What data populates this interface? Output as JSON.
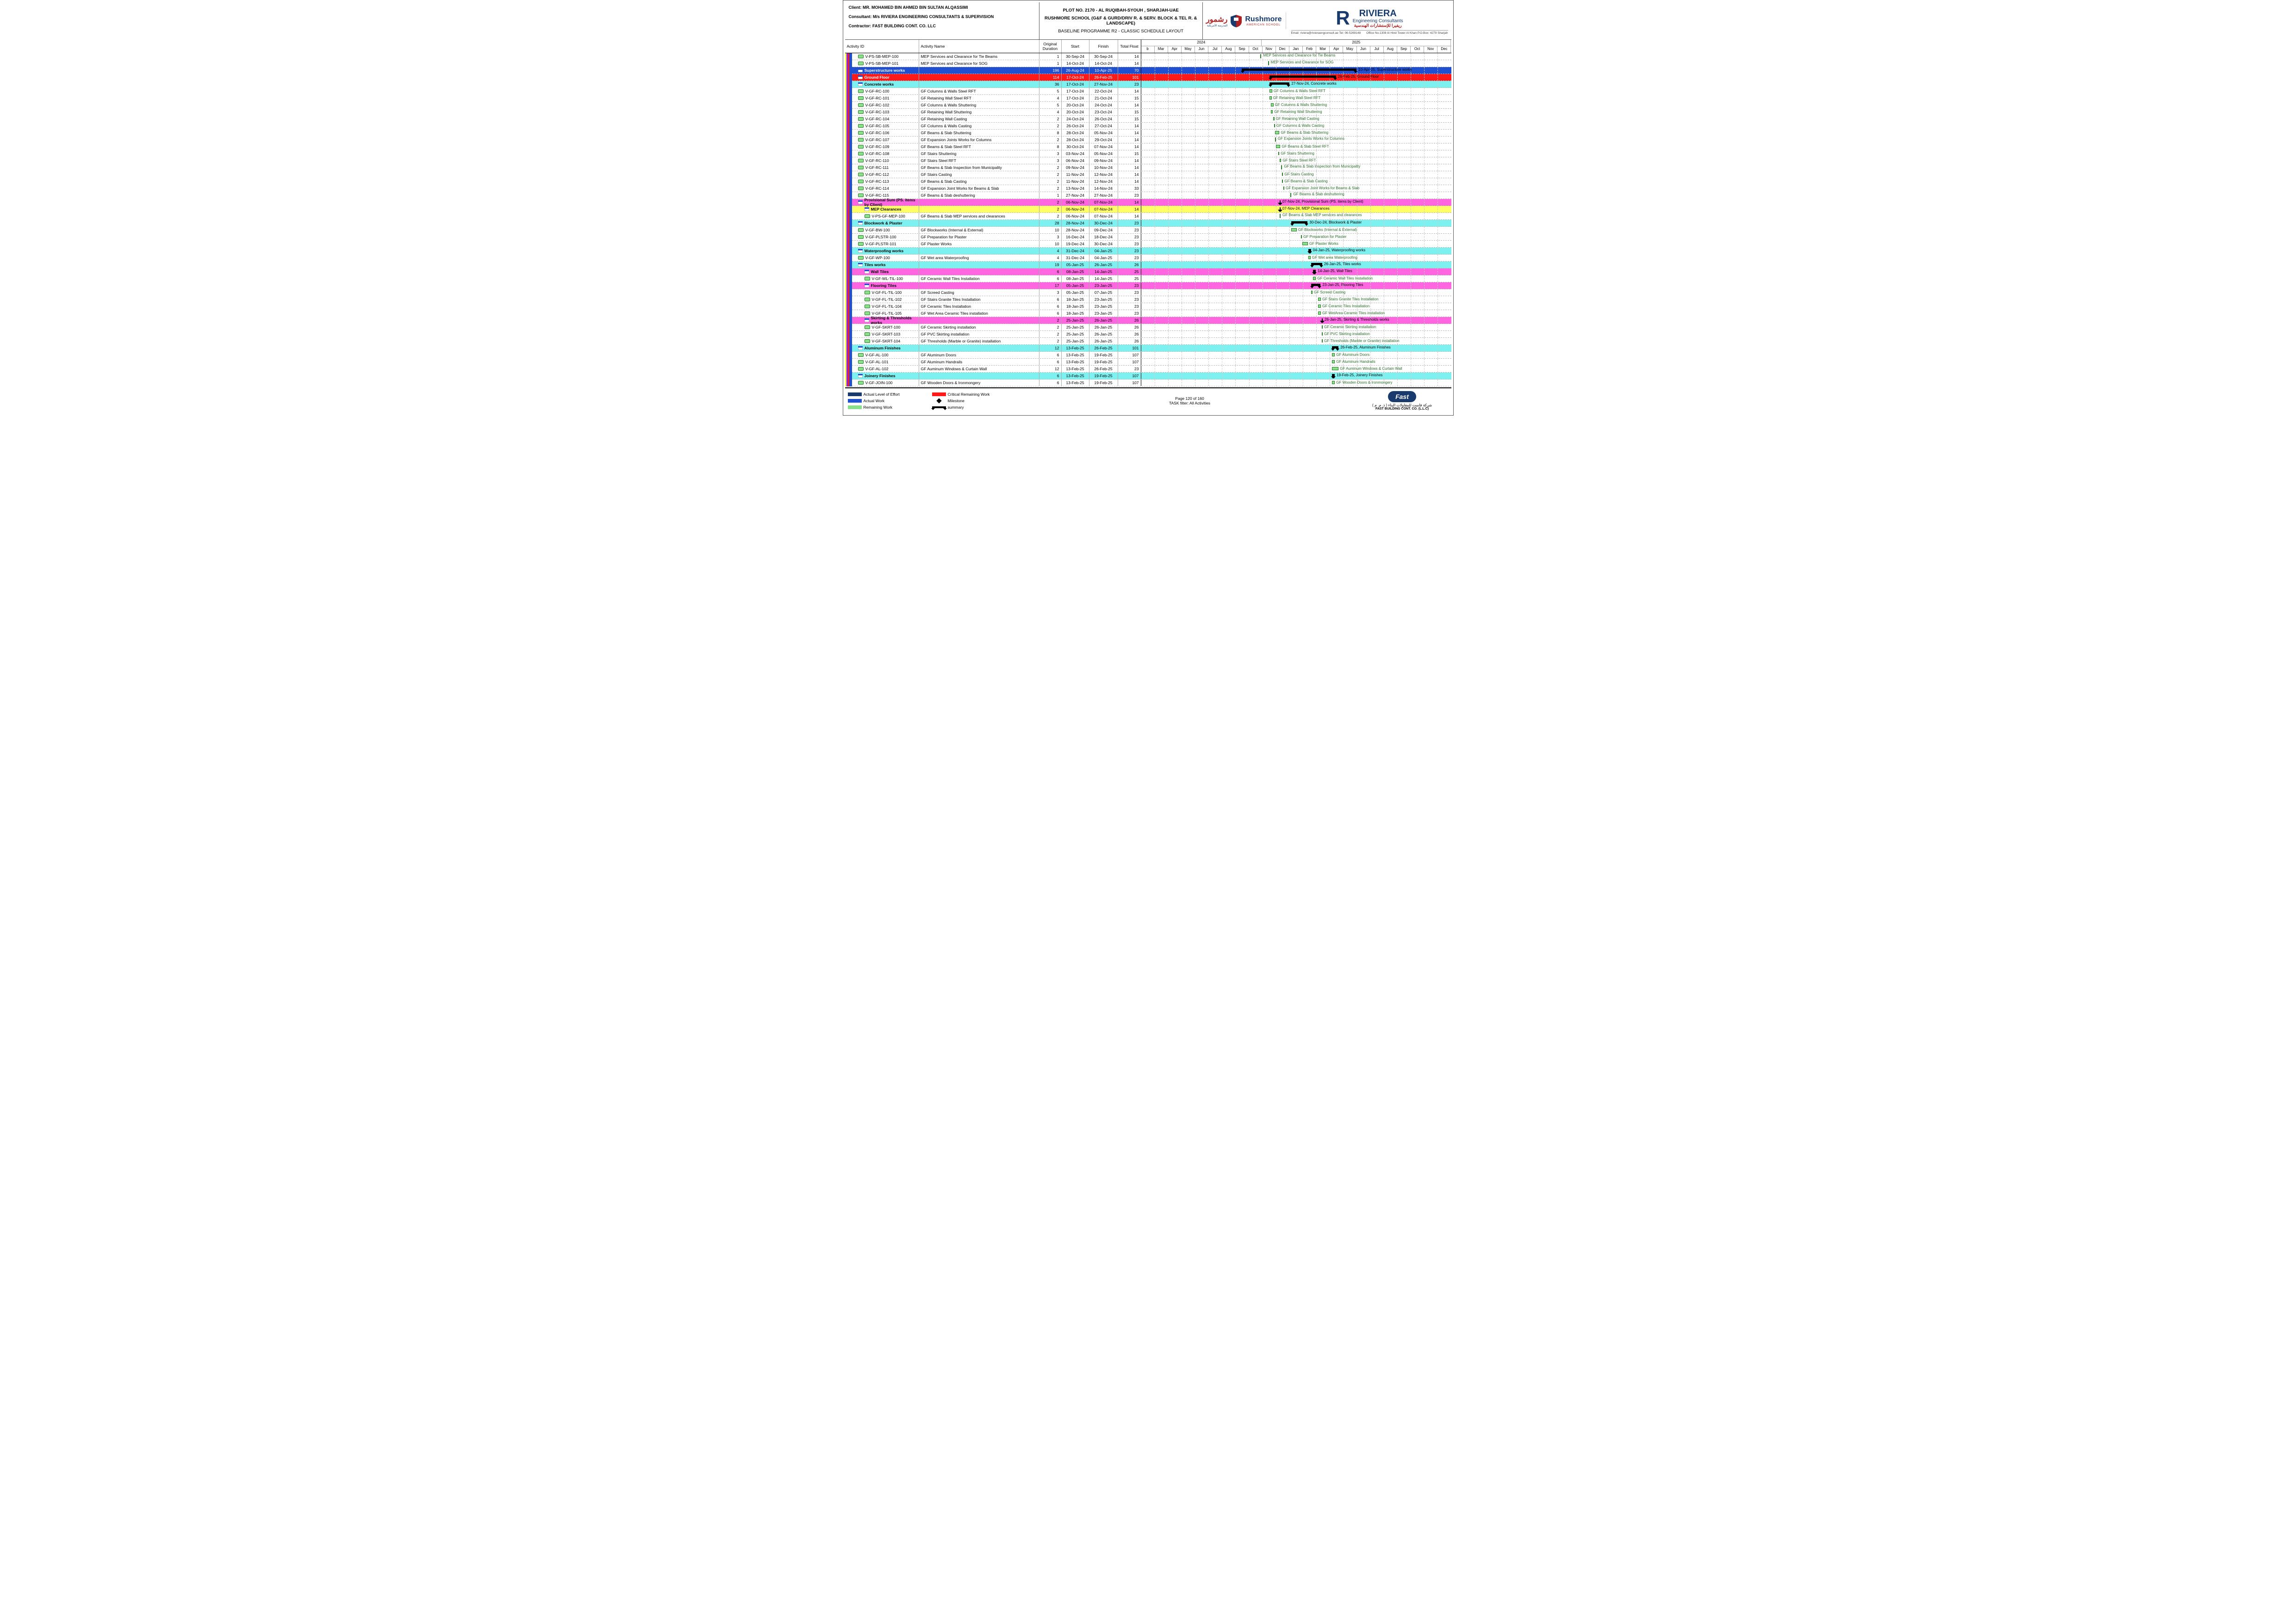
{
  "client": "Client: MR. MOHAMED BIN AHMED BIN SULTAN ALQASSIMI",
  "consultant": "Consultant: M/s RIVIERA ENGINEERING CONSULTANTS & SUPERVISION",
  "contractor": "Contractor: FAST BUILDING CONT. CO. LLC",
  "plot": "PLOT NO. 2170 - AL RUQIBAH-SYOUH , SHARJAH-UAE",
  "project": "RUSHMORE SCHOOL (G&F & GURD/DRIV R. & SERV. BLOCK & TEL R. & LANDSCAPE)",
  "baseline": "BASELINE PROGRAMME R2 - CLASSIC SCHEDULE LAYOUT",
  "rushmore_ar": "رشمور",
  "rushmore_en": "Rushmore",
  "rushmore_sub": "AMERICAN SCHOOL",
  "riviera": "RIVIERA",
  "riviera_sub": "Engineering Consultants",
  "riviera_ar": "ريفيرا للإستشارات الهندسية",
  "riviera_contact_l": "Email: riviera@rivieraengconsult.ae   Tel: 06-5269148",
  "riviera_contact_r": "Office No.1308 Al Hind Tower Al Khan   P.O.Box: 4279 Sharjah",
  "cols": {
    "id": "Activity ID",
    "name": "Activity Name",
    "dur": "Original Duration",
    "start": "Start",
    "finish": "Finish",
    "float": "Total Float"
  },
  "years": [
    {
      "l": "2024",
      "w": 38.9
    },
    {
      "l": "2025",
      "w": 61.1
    }
  ],
  "months": [
    "b",
    "Mar",
    "Apr",
    "May",
    "Jun",
    "Jul",
    "Aug",
    "Sep",
    "Oct",
    "Nov",
    "Dec",
    "Jan",
    "Feb",
    "Mar",
    "Apr",
    "May",
    "Jun",
    "Jul",
    "Aug",
    "Sep",
    "Oct",
    "Nov",
    "Dec"
  ],
  "stripe_colors": [
    "#ffff33",
    "#8a1cff",
    "#ff1a1a",
    "#2050d0",
    "#2050d0"
  ],
  "rows": [
    {
      "t": "task",
      "id": "V-PS-SB-MEP-100",
      "name": "MEP Services and Clearance for Tie Beams",
      "dur": "1",
      "s": "30-Sep-24",
      "f": "30-Sep-24",
      "fl": "14",
      "bar": {
        "x": 38.5,
        "w": 0.3,
        "type": "tick",
        "lbl": "MEP Services and Clearance for Tie Beams"
      }
    },
    {
      "t": "task",
      "id": "V-PS-SB-MEP-101",
      "name": "MEP Services and Clearance for SOG",
      "dur": "1",
      "s": "14-Oct-24",
      "f": "14-Oct-24",
      "fl": "14",
      "bar": {
        "x": 40.9,
        "w": 0.3,
        "type": "tick",
        "lbl": "MEP Services and Clearance for SOG"
      }
    },
    {
      "t": "grp",
      "bg": "bg-blue",
      "id": "Superstructure works",
      "name": "",
      "dur": "196",
      "s": "26-Aug-24",
      "f": "10-Apr-25",
      "fl": "70",
      "bar": {
        "x": 32.5,
        "w": 37,
        "type": "sum",
        "lbl": "10-Apr-25, Superstructure works",
        "lc": "b"
      }
    },
    {
      "t": "grp",
      "bg": "bg-red",
      "id": "Ground Floor",
      "name": "",
      "dur": "114",
      "s": "17-Oct-24",
      "f": "26-Feb-25",
      "fl": "101",
      "bar": {
        "x": 41.4,
        "w": 21.5,
        "type": "sum",
        "lbl": "26-Feb-25, Ground Floor",
        "lc": "b"
      }
    },
    {
      "t": "grp",
      "bg": "bg-cyan",
      "id": "Concrete works",
      "name": "",
      "dur": "36",
      "s": "17-Oct-24",
      "f": "27-Nov-24",
      "fl": "23",
      "bar": {
        "x": 41.4,
        "w": 6.5,
        "type": "sum",
        "lbl": "27-Nov-24, Concrete works",
        "lc": "b"
      }
    },
    {
      "t": "task",
      "id": "V-GF-RC-100",
      "name": "GF Columns & Walls Steel RFT",
      "dur": "5",
      "s": "17-Oct-24",
      "f": "22-Oct-24",
      "fl": "14",
      "bar": {
        "x": 41.4,
        "w": 0.9,
        "type": "task",
        "lbl": "GF Columns & Walls Steel RFT"
      }
    },
    {
      "t": "task",
      "id": "V-GF-RC-101",
      "name": "GF Retaining Wall Steel RFT",
      "dur": "4",
      "s": "17-Oct-24",
      "f": "21-Oct-24",
      "fl": "15",
      "bar": {
        "x": 41.4,
        "w": 0.7,
        "type": "task",
        "lbl": "GF Retaining Wall Steel RFT"
      }
    },
    {
      "t": "task",
      "id": "V-GF-RC-102",
      "name": "GF Columns & Walls Shuttering",
      "dur": "5",
      "s": "20-Oct-24",
      "f": "24-Oct-24",
      "fl": "14",
      "bar": {
        "x": 41.9,
        "w": 0.8,
        "type": "task",
        "lbl": "GF Columns & Walls Shuttering"
      }
    },
    {
      "t": "task",
      "id": "V-GF-RC-103",
      "name": "GF Retaining Wall Shuttering",
      "dur": "4",
      "s": "20-Oct-24",
      "f": "23-Oct-24",
      "fl": "15",
      "bar": {
        "x": 41.9,
        "w": 0.6,
        "type": "task",
        "lbl": "GF Retaining Wall Shuttering"
      }
    },
    {
      "t": "task",
      "id": "V-GF-RC-104",
      "name": "GF Retaining Wall Casting",
      "dur": "2",
      "s": "24-Oct-24",
      "f": "26-Oct-24",
      "fl": "15",
      "bar": {
        "x": 42.6,
        "w": 0.4,
        "type": "task",
        "lbl": "GF Retaining Wall Casting"
      }
    },
    {
      "t": "task",
      "id": "V-GF-RC-105",
      "name": "GF Columns & Walls Casting",
      "dur": "2",
      "s": "26-Oct-24",
      "f": "27-Oct-24",
      "fl": "14",
      "bar": {
        "x": 42.9,
        "w": 0.3,
        "type": "task",
        "lbl": "GF Columns & Walls Casting"
      }
    },
    {
      "t": "task",
      "id": "V-GF-RC-106",
      "name": "GF Beams & Slab Shuttering",
      "dur": "8",
      "s": "28-Oct-24",
      "f": "05-Nov-24",
      "fl": "14",
      "bar": {
        "x": 43.2,
        "w": 1.4,
        "type": "task",
        "lbl": "GF Beams & Slab Shuttering"
      }
    },
    {
      "t": "task",
      "id": "V-GF-RC-107",
      "name": "GF Expansion Joints Works for Columns",
      "dur": "2",
      "s": "28-Oct-24",
      "f": "29-Oct-24",
      "fl": "14",
      "bar": {
        "x": 43.2,
        "w": 0.3,
        "type": "tick",
        "lbl": "GF Expansion Joints Works for Columns"
      }
    },
    {
      "t": "task",
      "id": "V-GF-RC-109",
      "name": "GF Beams & Slab Steel RFT",
      "dur": "8",
      "s": "30-Oct-24",
      "f": "07-Nov-24",
      "fl": "14",
      "bar": {
        "x": 43.5,
        "w": 1.4,
        "type": "task",
        "lbl": "GF Beams & Slab Steel RFT"
      }
    },
    {
      "t": "task",
      "id": "V-GF-RC-108",
      "name": "GF Stairs Shuttering",
      "dur": "3",
      "s": "03-Nov-24",
      "f": "05-Nov-24",
      "fl": "15",
      "bar": {
        "x": 44.2,
        "w": 0.4,
        "type": "task",
        "lbl": "GF Stairs Shuttering"
      }
    },
    {
      "t": "task",
      "id": "V-GF-RC-110",
      "name": "GF Stairs Steel RFT",
      "dur": "3",
      "s": "06-Nov-24",
      "f": "09-Nov-24",
      "fl": "14",
      "bar": {
        "x": 44.7,
        "w": 0.5,
        "type": "task",
        "lbl": "GF Stairs Steel RFT"
      }
    },
    {
      "t": "task",
      "id": "V-GF-RC-111",
      "name": "GF Beams & Slab Inspection from Municipality",
      "dur": "2",
      "s": "09-Nov-24",
      "f": "10-Nov-24",
      "fl": "14",
      "bar": {
        "x": 45.2,
        "w": 0.3,
        "type": "tick",
        "lbl": "GF Beams & Slab Inspection from Municipality"
      }
    },
    {
      "t": "task",
      "id": "V-GF-RC-112",
      "name": "GF Stairs Casting",
      "dur": "2",
      "s": "11-Nov-24",
      "f": "12-Nov-24",
      "fl": "14",
      "bar": {
        "x": 45.5,
        "w": 0.3,
        "type": "task",
        "lbl": "GF Stairs Casting"
      }
    },
    {
      "t": "task",
      "id": "V-GF-RC-113",
      "name": "GF Beams & Slab Casting",
      "dur": "2",
      "s": "11-Nov-24",
      "f": "12-Nov-24",
      "fl": "14",
      "bar": {
        "x": 45.5,
        "w": 0.3,
        "type": "task",
        "lbl": "GF Beams & Slab Casting"
      }
    },
    {
      "t": "task",
      "id": "V-GF-RC-114",
      "name": "GF Expansion Joint Works for Beams & Slab",
      "dur": "2",
      "s": "13-Nov-24",
      "f": "14-Nov-24",
      "fl": "33",
      "bar": {
        "x": 45.9,
        "w": 0.3,
        "type": "task",
        "lbl": "GF Expansion Joint Works for Beams & Slab"
      }
    },
    {
      "t": "task",
      "id": "V-GF-RC-115",
      "name": "GF Beams & Slab deshuttering",
      "dur": "1",
      "s": "27-Nov-24",
      "f": "27-Nov-24",
      "fl": "23",
      "bar": {
        "x": 48.2,
        "w": 0.3,
        "type": "tick",
        "lbl": "GF Beams & Slab deshuttering"
      }
    },
    {
      "t": "grp",
      "bg": "bg-magenta",
      "id": "Provisional Sum (PS. items by Client)",
      "name": "",
      "dur": "2",
      "s": "06-Nov-24",
      "f": "07-Nov-24",
      "fl": "14",
      "bar": {
        "x": 44.7,
        "w": 0.3,
        "type": "sum",
        "lbl": "07-Nov-24, Provisional Sum (PS. items by Client)",
        "lc": "b"
      }
    },
    {
      "t": "grp",
      "bg": "bg-yellow",
      "id": "MEP Clearances",
      "name": "",
      "dur": "2",
      "s": "06-Nov-24",
      "f": "07-Nov-24",
      "fl": "14",
      "indent": 1,
      "bar": {
        "x": 44.7,
        "w": 0.3,
        "type": "sum",
        "lbl": "07-Nov-24, MEP Clearances",
        "lc": "b"
      }
    },
    {
      "t": "task",
      "id": "V-PS-GF-MEP-100",
      "name": "GF Beams & Slab MEP services and clearances",
      "dur": "2",
      "s": "06-Nov-24",
      "f": "07-Nov-24",
      "fl": "14",
      "indent": 1,
      "bar": {
        "x": 44.7,
        "w": 0.3,
        "type": "tick",
        "lbl": "GF Beams & Slab MEP services and clearances"
      }
    },
    {
      "t": "grp",
      "bg": "bg-cyan",
      "id": "Blockwork & Plaster",
      "name": "",
      "dur": "28",
      "s": "28-Nov-24",
      "f": "30-Dec-24",
      "fl": "23",
      "bar": {
        "x": 48.4,
        "w": 5.3,
        "type": "sum",
        "lbl": "30-Dec-24, Blockwork & Plaster",
        "lc": "b"
      }
    },
    {
      "t": "task",
      "id": "V-GF-BW-100",
      "name": "GF Blockworks (Internal & External)",
      "dur": "10",
      "s": "28-Nov-24",
      "f": "09-Dec-24",
      "fl": "23",
      "bar": {
        "x": 48.4,
        "w": 1.8,
        "type": "task",
        "lbl": "GF Blockworks (Internal & External)"
      }
    },
    {
      "t": "task",
      "id": "V-GF-PLSTR-100",
      "name": "GF Preparation for Plaster",
      "dur": "3",
      "s": "16-Dec-24",
      "f": "18-Dec-24",
      "fl": "23",
      "bar": {
        "x": 51.5,
        "w": 0.4,
        "type": "task",
        "lbl": "GF Preparation for Plaster"
      }
    },
    {
      "t": "task",
      "id": "V-GF-PLSTR-101",
      "name": "GF Plaster Works",
      "dur": "10",
      "s": "19-Dec-24",
      "f": "30-Dec-24",
      "fl": "23",
      "bar": {
        "x": 52,
        "w": 1.8,
        "type": "task",
        "lbl": "GF Plaster Works"
      }
    },
    {
      "t": "grp",
      "bg": "bg-cyan",
      "id": "Waterproofing works",
      "name": "",
      "dur": "4",
      "s": "31-Dec-24",
      "f": "04-Jan-25",
      "fl": "23",
      "bar": {
        "x": 54,
        "w": 0.8,
        "type": "sum",
        "lbl": "04-Jan-25, Waterproofing works",
        "lc": "b"
      }
    },
    {
      "t": "task",
      "id": "V-GF-WP-100",
      "name": "GF Wet area Waterproofing",
      "dur": "4",
      "s": "31-Dec-24",
      "f": "04-Jan-25",
      "fl": "23",
      "bar": {
        "x": 54,
        "w": 0.7,
        "type": "task",
        "lbl": "GF Wet area Waterproofing"
      }
    },
    {
      "t": "grp",
      "bg": "bg-cyan",
      "id": "Tiles works",
      "name": "",
      "dur": "19",
      "s": "05-Jan-25",
      "f": "26-Jan-25",
      "fl": "26",
      "bar": {
        "x": 54.9,
        "w": 3.5,
        "type": "sum",
        "lbl": "26-Jan-25, Tiles works",
        "lc": "b"
      }
    },
    {
      "t": "grp",
      "bg": "bg-magenta",
      "id": "Wall Tiles",
      "name": "",
      "dur": "6",
      "s": "08-Jan-25",
      "f": "14-Jan-25",
      "fl": "25",
      "indent": 1,
      "bar": {
        "x": 55.4,
        "w": 1,
        "type": "sum",
        "lbl": "14-Jan-25, Wall Tiles",
        "lc": "b"
      }
    },
    {
      "t": "task",
      "id": "V-GF-WL-TIL-100",
      "name": "GF Ceramic Wall Tiles Installation",
      "dur": "6",
      "s": "08-Jan-25",
      "f": "14-Jan-25",
      "fl": "25",
      "indent": 1,
      "bar": {
        "x": 55.4,
        "w": 1,
        "type": "task",
        "lbl": "GF Ceramic Wall Tiles Installation"
      }
    },
    {
      "t": "grp",
      "bg": "bg-magenta",
      "id": "Flooring Tiles",
      "name": "",
      "dur": "17",
      "s": "05-Jan-25",
      "f": "23-Jan-25",
      "fl": "23",
      "indent": 1,
      "bar": {
        "x": 54.9,
        "w": 3,
        "type": "sum",
        "lbl": "23-Jan-25, Flooring Tiles",
        "lc": "b"
      }
    },
    {
      "t": "task",
      "id": "V-GF-FL-TIL-100",
      "name": "GF Screed Casting",
      "dur": "3",
      "s": "05-Jan-25",
      "f": "07-Jan-25",
      "fl": "23",
      "indent": 1,
      "bar": {
        "x": 54.9,
        "w": 0.4,
        "type": "task",
        "lbl": "GF Screed Casting"
      }
    },
    {
      "t": "task",
      "id": "V-GF-FL-TIL-102",
      "name": "GF Stairs Granite Tiles Installation",
      "dur": "6",
      "s": "18-Jan-25",
      "f": "23-Jan-25",
      "fl": "23",
      "indent": 1,
      "bar": {
        "x": 57.1,
        "w": 0.9,
        "type": "task",
        "lbl": "GF Stairs Granite Tiles Installation"
      }
    },
    {
      "t": "task",
      "id": "V-GF-FL-TIL-104",
      "name": "GF Ceramic Tiles Installation",
      "dur": "6",
      "s": "18-Jan-25",
      "f": "23-Jan-25",
      "fl": "23",
      "indent": 1,
      "bar": {
        "x": 57.1,
        "w": 0.9,
        "type": "task",
        "lbl": "GF Ceramic Tiles Installation"
      }
    },
    {
      "t": "task",
      "id": "V-GF-FL-TIL-105",
      "name": "GF Wet Area Ceramic Tiles installation",
      "dur": "6",
      "s": "18-Jan-25",
      "f": "23-Jan-25",
      "fl": "23",
      "indent": 1,
      "bar": {
        "x": 57.1,
        "w": 0.9,
        "type": "task",
        "lbl": "GF WetArea Ceramic Tiles installation"
      }
    },
    {
      "t": "grp",
      "bg": "bg-magenta",
      "id": "Skirting & Thresholds works",
      "name": "",
      "dur": "2",
      "s": "25-Jan-25",
      "f": "26-Jan-25",
      "fl": "26",
      "indent": 1,
      "bar": {
        "x": 58.3,
        "w": 0.3,
        "type": "sum",
        "lbl": "26-Jan-25, Skirting & Thresholds works",
        "lc": "b"
      }
    },
    {
      "t": "task",
      "id": "V-GF-SKRT-100",
      "name": "GF Ceramic Skirting installation",
      "dur": "2",
      "s": "25-Jan-25",
      "f": "26-Jan-25",
      "fl": "26",
      "indent": 1,
      "bar": {
        "x": 58.3,
        "w": 0.3,
        "type": "task",
        "lbl": "GF Ceramic Skirting installation"
      }
    },
    {
      "t": "task",
      "id": "V-GF-SKRT-103",
      "name": "GF PVC Skirting installation",
      "dur": "2",
      "s": "25-Jan-25",
      "f": "26-Jan-25",
      "fl": "26",
      "indent": 1,
      "bar": {
        "x": 58.3,
        "w": 0.3,
        "type": "task",
        "lbl": "GF PVC Skirting installation"
      }
    },
    {
      "t": "task",
      "id": "V-GF-SKRT-104",
      "name": "GF Thresholds (Marble or Granite) installation",
      "dur": "2",
      "s": "25-Jan-25",
      "f": "26-Jan-25",
      "fl": "26",
      "indent": 1,
      "bar": {
        "x": 58.3,
        "w": 0.3,
        "type": "task",
        "lbl": "GF Thresholds (Marble or Granite) installation"
      }
    },
    {
      "t": "grp",
      "bg": "bg-cyan",
      "id": "Aluminum Finishes",
      "name": "",
      "dur": "12",
      "s": "13-Feb-25",
      "f": "26-Feb-25",
      "fl": "101",
      "bar": {
        "x": 61.5,
        "w": 2.2,
        "type": "sum",
        "lbl": "26-Feb-25, Aluminum Finishes",
        "lc": "b"
      }
    },
    {
      "t": "task",
      "id": "V-GF-AL-100",
      "name": "GF Aluminum Doors",
      "dur": "6",
      "s": "13-Feb-25",
      "f": "19-Feb-25",
      "fl": "107",
      "bar": {
        "x": 61.5,
        "w": 1,
        "type": "task",
        "lbl": "GF Aluminum Doors"
      }
    },
    {
      "t": "task",
      "id": "V-GF-AL-101",
      "name": "GF Aluminum Handrails",
      "dur": "6",
      "s": "13-Feb-25",
      "f": "19-Feb-25",
      "fl": "107",
      "bar": {
        "x": 61.5,
        "w": 1,
        "type": "task",
        "lbl": "GF Aluminum Handrails"
      }
    },
    {
      "t": "task",
      "id": "V-GF-AL-102",
      "name": "GF Auminum Windows & Curtain Wall",
      "dur": "12",
      "s": "13-Feb-25",
      "f": "26-Feb-25",
      "fl": "23",
      "bar": {
        "x": 61.5,
        "w": 2.2,
        "type": "task",
        "lbl": "GF Auminum Windows & Curtain Wall"
      }
    },
    {
      "t": "grp",
      "bg": "bg-cyan",
      "id": "Joinery Finishes",
      "name": "",
      "dur": "6",
      "s": "13-Feb-25",
      "f": "19-Feb-25",
      "fl": "107",
      "bar": {
        "x": 61.5,
        "w": 1,
        "type": "sum",
        "lbl": "19-Feb-25, Joinery Finishes",
        "lc": "b"
      }
    },
    {
      "t": "task",
      "id": "V-GF-JOIN-100",
      "name": "GF Wooden Doors & Ironmongery",
      "dur": "6",
      "s": "13-Feb-25",
      "f": "19-Feb-25",
      "fl": "107",
      "bar": {
        "x": 61.5,
        "w": 1,
        "type": "task",
        "lbl": "GF Wooden Doors & Ironmongery"
      }
    }
  ],
  "legend": [
    {
      "c": "#183a6d",
      "t": "Actual Level of Effort",
      "sh": "box"
    },
    {
      "c": "#ff1a1a",
      "t": "Critical Remaining Work",
      "sh": "box"
    },
    {
      "c": "#2050d0",
      "t": "Actual Work",
      "sh": "box"
    },
    {
      "c": "#000",
      "t": "Milestone",
      "sh": "diamond"
    },
    {
      "c": "#8ae08a",
      "t": "Remaining Work",
      "sh": "box"
    },
    {
      "c": "#000",
      "t": "summary",
      "sh": "summary"
    }
  ],
  "footer": {
    "page": "Page 120 of 160",
    "filter": "TASK filter: All Activities",
    "fast": "Fast",
    "fast_ar": "شركة فاست للمقاولات البناء ( ذ. م. م )",
    "fast_en": "FAST BUILDING CONT. CO. (L.L.C)"
  }
}
